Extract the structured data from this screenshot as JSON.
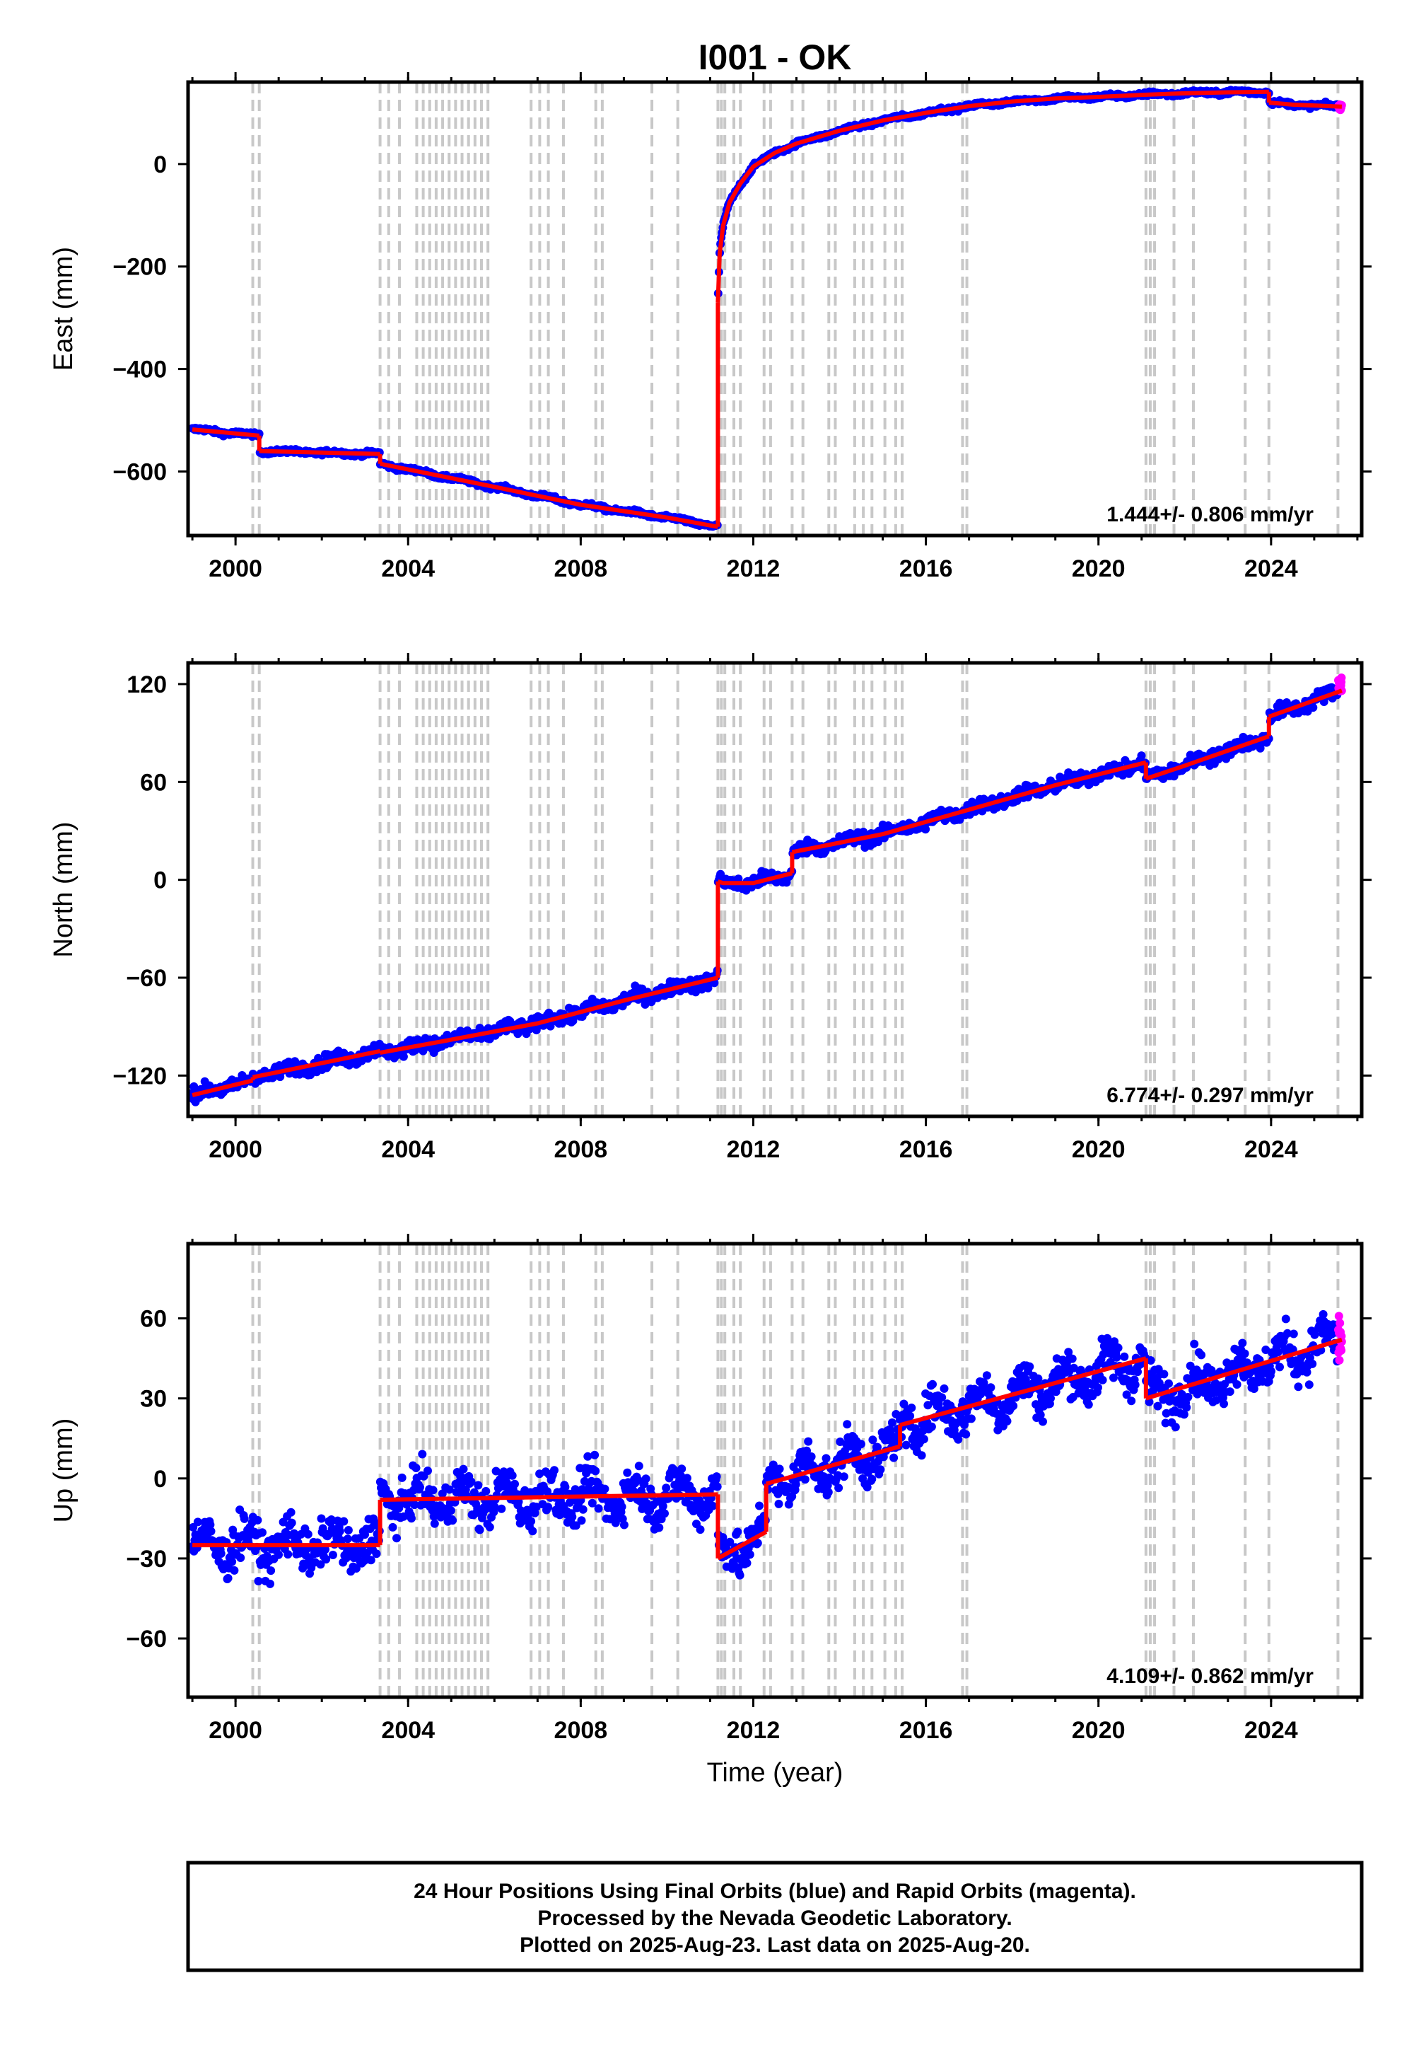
{
  "chart_data": {
    "type": "scatter",
    "title": "I001 - OK",
    "xlabel": "Time (year)",
    "xlim": [
      1998.9,
      2026.1
    ],
    "x_ticks": [
      2000,
      2004,
      2008,
      2012,
      2016,
      2020,
      2024
    ],
    "x_tick_labels": [
      "2000",
      "2004",
      "2008",
      "2012",
      "2016",
      "2020",
      "2024"
    ],
    "grid": false,
    "colors": {
      "final": "#0000ff",
      "rapid": "#ff00ff",
      "model": "#ff0000",
      "steps": "#c8c8c8"
    },
    "step_lines": [
      2000.4,
      2000.55,
      2003.35,
      2003.55,
      2003.8,
      2004.2,
      2004.35,
      2004.5,
      2004.65,
      2004.8,
      2004.95,
      2005.1,
      2005.25,
      2005.4,
      2005.55,
      2005.7,
      2005.85,
      2006.85,
      2007.05,
      2007.25,
      2007.6,
      2008.35,
      2008.5,
      2009.65,
      2010.25,
      2011.18,
      2011.26,
      2011.34,
      2011.55,
      2011.7,
      2012.25,
      2012.4,
      2012.9,
      2013.15,
      2013.75,
      2013.9,
      2014.35,
      2014.55,
      2014.75,
      2015.05,
      2015.3,
      2015.45,
      2016.85,
      2016.95,
      2021.1,
      2021.2,
      2021.3,
      2021.75,
      2022.2,
      2023.4,
      2023.95,
      2025.55
    ],
    "panels": [
      {
        "ylabel": "East (mm)",
        "ylim": [
          -725,
          160
        ],
        "y_ticks": [
          0,
          -200,
          -400,
          -600
        ],
        "y_tick_labels": [
          "0",
          "−200",
          "−400",
          "−600"
        ],
        "rate_label": "1.444+/- 0.806 mm/yr",
        "model_segments": [
          {
            "x": [
              1999.0,
              2000.55
            ],
            "y": [
              -518,
              -530
            ]
          },
          {
            "x": [
              2000.55,
              2003.35
            ],
            "y": [
              -560,
              -566
            ]
          },
          {
            "x": [
              2003.35,
              2006.0,
              2008.0,
              2010.0,
              2011.18
            ],
            "y": [
              -585,
              -630,
              -665,
              -690,
              -708
            ]
          },
          {
            "x": [
              2011.18,
              2011.22,
              2011.3,
              2011.45,
              2011.7,
              2012.0,
              2012.5,
              2013.0,
              2014.0,
              2015.0,
              2016.0,
              2017.0,
              2018.0,
              2019.0,
              2020.0,
              2021.0,
              2022.0,
              2023.0,
              2023.95
            ],
            "y": [
              -270,
              -175,
              -120,
              -75,
              -38,
              -5,
              22,
              40,
              65,
              85,
              100,
              113,
              122,
              128,
              131,
              135,
              138,
              140,
              141
            ]
          },
          {
            "x": [
              2023.95,
              2024.5,
              2025.64
            ],
            "y": [
              120,
              116,
              112
            ]
          }
        ]
      },
      {
        "ylabel": "North (mm)",
        "ylim": [
          -145,
          133
        ],
        "y_ticks": [
          120,
          60,
          0,
          -60,
          -120
        ],
        "y_tick_labels": [
          "120",
          "60",
          "0",
          "−60",
          "−120"
        ],
        "rate_label": "6.774+/- 0.297 mm/yr",
        "model_segments": [
          {
            "x": [
              1999.0,
              2000.4
            ],
            "y": [
              -132,
              -123
            ]
          },
          {
            "x": [
              2000.4,
              2003.35
            ],
            "y": [
              -121,
              -105
            ]
          },
          {
            "x": [
              2003.35,
              2005.0,
              2007.0,
              2009.0,
              2011.18
            ],
            "y": [
              -106,
              -98,
              -88,
              -74,
              -60
            ]
          },
          {
            "x": [
              2011.18,
              2011.3,
              2012.0,
              2012.9
            ],
            "y": [
              -1,
              -2,
              -2,
              4
            ]
          },
          {
            "x": [
              2012.9,
              2015.0,
              2017.0,
              2019.0,
              2021.1
            ],
            "y": [
              17,
              28,
              43,
              58,
              72
            ]
          },
          {
            "x": [
              2021.1,
              2022.0,
              2023.95
            ],
            "y": [
              62,
              70,
              88
            ]
          },
          {
            "x": [
              2023.95,
              2025.64
            ],
            "y": [
              100,
              116
            ]
          }
        ]
      },
      {
        "ylabel": "Up (mm)",
        "ylim": [
          -82,
          88
        ],
        "y_ticks": [
          60,
          30,
          0,
          -30,
          -60
        ],
        "y_tick_labels": [
          "60",
          "30",
          "0",
          "−30",
          "−60"
        ],
        "rate_label": "4.109+/- 0.862 mm/yr",
        "model_segments": [
          {
            "x": [
              1999.0,
              2003.35
            ],
            "y": [
              -25,
              -25
            ]
          },
          {
            "x": [
              2003.35,
              2011.18
            ],
            "y": [
              -8,
              -6
            ]
          },
          {
            "x": [
              2011.18,
              2012.3
            ],
            "y": [
              -30,
              -20
            ]
          },
          {
            "x": [
              2012.3,
              2015.4
            ],
            "y": [
              -2,
              12
            ]
          },
          {
            "x": [
              2015.4,
              2021.1
            ],
            "y": [
              20,
              45
            ]
          },
          {
            "x": [
              2021.1,
              2025.64
            ],
            "y": [
              30,
              52
            ]
          }
        ]
      }
    ]
  },
  "caption": {
    "line1": "24 Hour Positions Using Final Orbits (blue) and Rapid Orbits (magenta).",
    "line2": "Processed by the Nevada Geodetic Laboratory.",
    "line3": "Plotted on 2025-Aug-23. Last data on 2025-Aug-20."
  }
}
